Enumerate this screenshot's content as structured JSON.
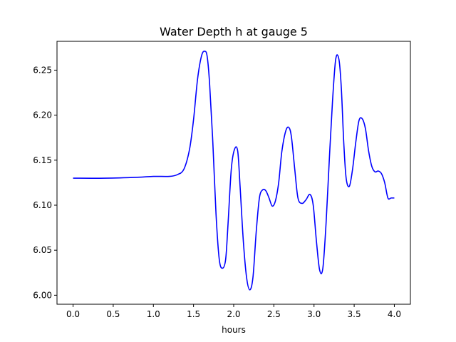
{
  "chart_data": {
    "type": "line",
    "title": "Water Depth h at gauge 5",
    "xlabel": "hours",
    "ylabel": "",
    "xlim": [
      -0.2,
      4.2
    ],
    "ylim": [
      5.99,
      6.282
    ],
    "xticks": [
      0.0,
      0.5,
      1.0,
      1.5,
      2.0,
      2.5,
      3.0,
      3.5,
      4.0
    ],
    "xtick_labels": [
      "0.0",
      "0.5",
      "1.0",
      "1.5",
      "2.0",
      "2.5",
      "3.0",
      "3.5",
      "4.0"
    ],
    "yticks": [
      6.0,
      6.05,
      6.1,
      6.15,
      6.2,
      6.25
    ],
    "ytick_labels": [
      "6.00",
      "6.05",
      "6.10",
      "6.15",
      "6.20",
      "6.25"
    ],
    "grid": false,
    "series": [
      {
        "color": "#0000ff",
        "x": [
          0.0,
          0.4,
          0.8,
          1.0,
          1.2,
          1.3,
          1.38,
          1.45,
          1.5,
          1.55,
          1.6,
          1.64,
          1.67,
          1.7,
          1.74,
          1.78,
          1.82,
          1.86,
          1.9,
          1.93,
          1.97,
          2.01,
          2.05,
          2.08,
          2.12,
          2.16,
          2.2,
          2.24,
          2.28,
          2.32,
          2.36,
          2.4,
          2.44,
          2.48,
          2.52,
          2.56,
          2.6,
          2.65,
          2.69,
          2.72,
          2.76,
          2.8,
          2.85,
          2.9,
          2.95,
          2.99,
          3.03,
          3.07,
          3.11,
          3.15,
          3.19,
          3.23,
          3.27,
          3.31,
          3.34,
          3.37,
          3.4,
          3.44,
          3.48,
          3.52,
          3.56,
          3.6,
          3.64,
          3.68,
          3.72,
          3.76,
          3.8,
          3.84,
          3.88,
          3.92,
          3.96,
          4.0
        ],
        "y": [
          6.13,
          6.13,
          6.131,
          6.132,
          6.132,
          6.134,
          6.14,
          6.162,
          6.195,
          6.24,
          6.266,
          6.271,
          6.265,
          6.235,
          6.17,
          6.09,
          6.04,
          6.03,
          6.04,
          6.08,
          6.14,
          6.162,
          6.16,
          6.12,
          6.06,
          6.02,
          6.006,
          6.02,
          6.07,
          6.108,
          6.117,
          6.116,
          6.108,
          6.099,
          6.105,
          6.125,
          6.16,
          6.183,
          6.186,
          6.175,
          6.14,
          6.108,
          6.102,
          6.106,
          6.112,
          6.1,
          6.06,
          6.028,
          6.03,
          6.08,
          6.15,
          6.215,
          6.262,
          6.262,
          6.23,
          6.17,
          6.13,
          6.121,
          6.14,
          6.17,
          6.194,
          6.196,
          6.185,
          6.16,
          6.143,
          6.137,
          6.138,
          6.135,
          6.125,
          6.108,
          6.108,
          6.108
        ]
      }
    ]
  }
}
